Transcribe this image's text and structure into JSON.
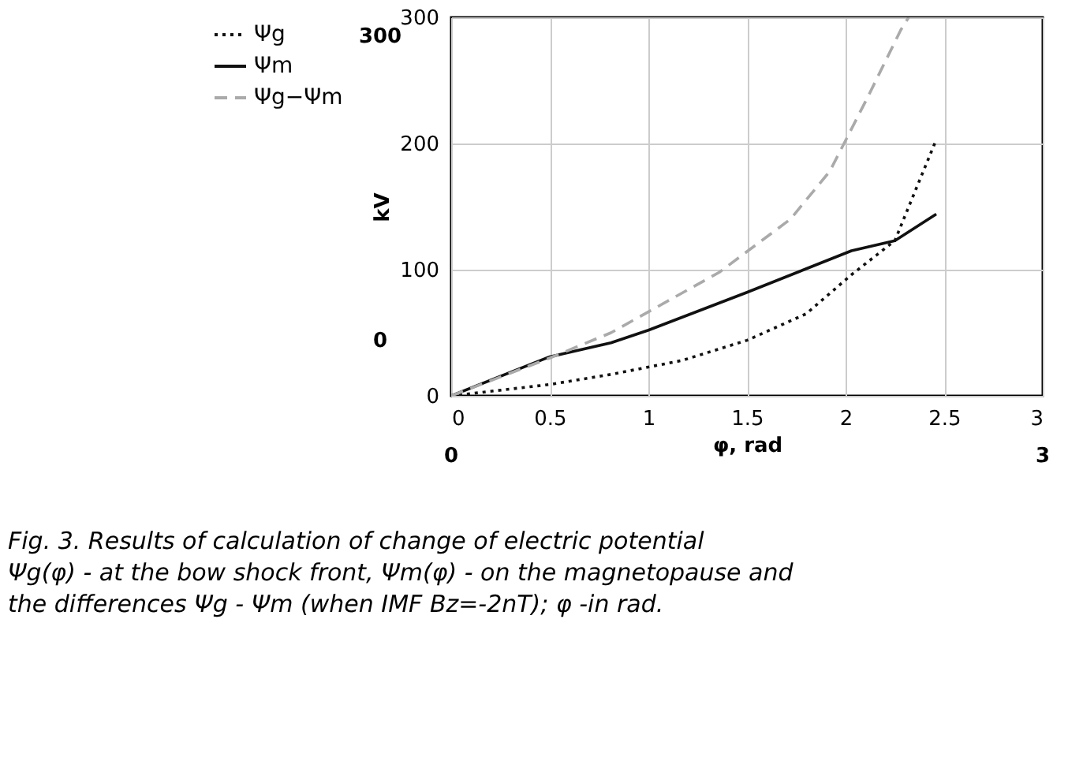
{
  "chart_data": {
    "type": "line",
    "xlabel": "φ, rad",
    "ylabel": "kV",
    "xlim": [
      0,
      3
    ],
    "xticks": [
      0,
      0.5,
      1,
      1.5,
      2,
      2.5,
      3
    ],
    "ylim": [
      0,
      300
    ],
    "yticks": [
      0,
      100,
      200,
      300
    ],
    "grid": true,
    "legend": "left",
    "marker": "none",
    "series": [
      {
        "name": "Ψg",
        "color": "#111111",
        "line_style": "dotted",
        "x": [
          0,
          0.5,
          0.81,
          1.17,
          1.5,
          1.8,
          2.03,
          2.25,
          2.36,
          2.46
        ],
        "values": [
          0,
          9,
          17,
          28,
          44,
          65,
          96,
          123,
          165,
          203
        ]
      },
      {
        "name": "Ψm",
        "color": "#111111",
        "line_style": "solid",
        "x": [
          0,
          0.5,
          0.81,
          1.0,
          1.5,
          2.03,
          2.25,
          2.46
        ],
        "values": [
          0,
          31,
          42,
          52,
          82,
          115,
          123,
          144
        ]
      },
      {
        "name": "Ψg−Ψm",
        "color": "#aaaaaa",
        "line_style": "dashed",
        "x": [
          0,
          0.5,
          0.81,
          1.36,
          1.72,
          1.92,
          2.11,
          2.28,
          2.32
        ],
        "values": [
          0,
          30,
          50,
          98,
          140,
          178,
          236,
          290,
          300
        ]
      }
    ],
    "annotations": [
      "300",
      "0",
      "0",
      "3",
      "Fig. 3. Results of calculation of change of electric potential Ψg(φ) - at the bow shock front, Ψm(φ) - on the magnetopause and the differences Ψg - Ψm (when IMF Bz=-2nT); φ -in rad."
    ]
  }
}
